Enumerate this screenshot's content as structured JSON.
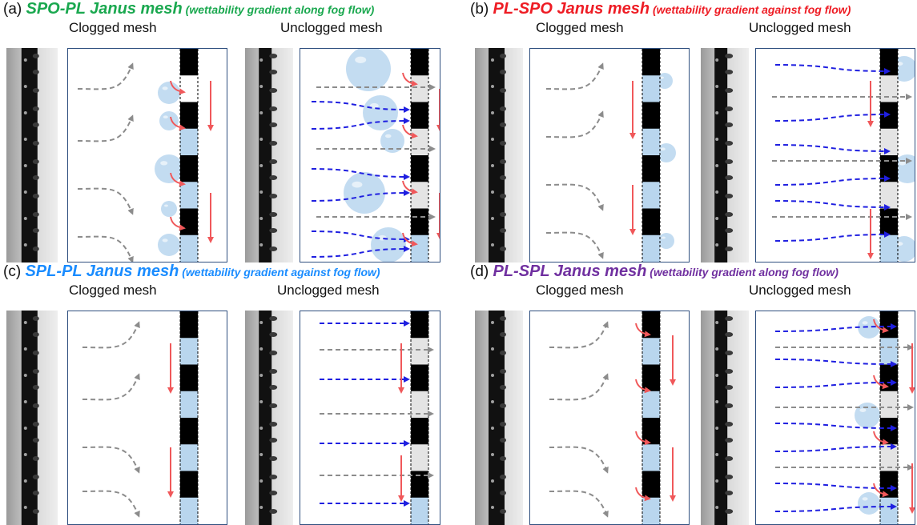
{
  "panels": [
    {
      "label": "(a) ",
      "name": "SPO-PL Janus mesh",
      "note": " (wettability gradient along fog flow)",
      "color": "#1aa84f",
      "clogged": "Clogged mesh",
      "unclogged": "Unclogged mesh"
    },
    {
      "label": "(b) ",
      "name": "PL-SPO Janus mesh",
      "note": " (wettability gradient against fog flow)",
      "color": "#ee1c24",
      "clogged": "Clogged mesh",
      "unclogged": "Unclogged mesh"
    },
    {
      "label": "(c) ",
      "name": "SPL-PL Janus mesh",
      "note": " (wettability gradient against fog flow)",
      "color": "#1a8cff",
      "clogged": "Clogged mesh",
      "unclogged": "Unclogged mesh"
    },
    {
      "label": "(d) ",
      "name": "PL-SPL Janus mesh",
      "note": " (wettability gradient along fog flow)",
      "color": "#7030a0",
      "clogged": "Clogged mesh",
      "unclogged": "Unclogged mesh"
    }
  ],
  "colors": {
    "clogged_flow": "#8c8c8c",
    "unclogged_flow": "#1f1fe0",
    "drain_arrow": "#f0585a",
    "droplet": "#b9d6ee",
    "mesh_wire": "#000000",
    "schematic_border": "#2f4f7f"
  },
  "icons": {
    "fog_flow": "dashed-arrow-icon",
    "drain": "red-arrow-icon",
    "droplet": "water-droplet-icon",
    "mesh": "mesh-cross-section-icon"
  }
}
